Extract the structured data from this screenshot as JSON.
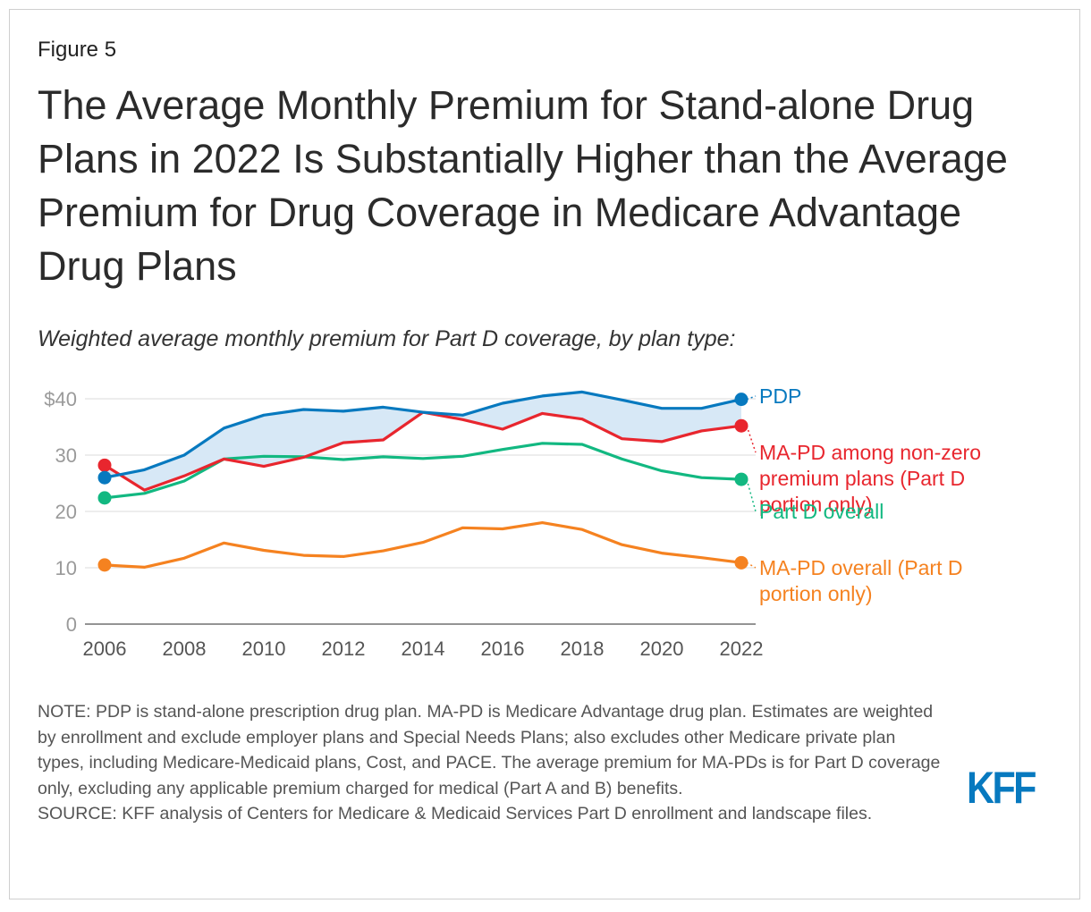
{
  "figure_label": "Figure 5",
  "title": "The Average Monthly Premium for Stand-alone Drug Plans in 2022 Is Substantially Higher than the Average Premium for Drug Coverage in Medicare Advantage Drug Plans",
  "subtitle": "Weighted average monthly premium for Part D coverage, by plan type:",
  "note": "NOTE: PDP is stand-alone prescription drug plan. MA-PD is Medicare Advantage drug plan. Estimates are weighted by enrollment and exclude employer plans and Special Needs Plans; also excludes other Medicare private plan types, including Medicare-Medicaid plans, Cost, and PACE. The average premium for MA-PDs is for Part D coverage only, excluding any applicable premium charged for medical (Part A and B) benefits.",
  "source": "SOURCE: KFF analysis of Centers for Medicare & Medicaid Services Part D enrollment and landscape files.",
  "logo": "KFF",
  "chart_data": {
    "type": "line",
    "title": "Weighted average monthly premium for Part D coverage, by plan type:",
    "xlabel": "",
    "ylabel": "",
    "x": [
      2006,
      2007,
      2008,
      2009,
      2010,
      2011,
      2012,
      2013,
      2014,
      2015,
      2016,
      2017,
      2018,
      2019,
      2020,
      2021,
      2022
    ],
    "x_ticks": [
      "2006",
      "2008",
      "2010",
      "2012",
      "2014",
      "2016",
      "2018",
      "2020",
      "2022"
    ],
    "y_ticks": [
      "$40",
      "30",
      "20",
      "10",
      "0"
    ],
    "ylim": [
      0,
      40
    ],
    "grid": true,
    "shaded_band": "between PDP and MA-PD among non-zero premium plans",
    "series": [
      {
        "name": "PDP",
        "label": "PDP",
        "color": "#0779bf",
        "values": [
          26.0,
          27.4,
          30.0,
          34.8,
          37.1,
          38.1,
          37.8,
          38.5,
          37.6,
          37.1,
          39.2,
          40.5,
          41.2,
          39.8,
          38.3,
          38.3,
          39.9
        ]
      },
      {
        "name": "MA-PD among non-zero premium plans (Part D portion only)",
        "label": "MA-PD among non-zero premium plans (Part D portion only)",
        "color": "#e8262e",
        "values": [
          28.2,
          23.8,
          26.3,
          29.3,
          28.0,
          29.6,
          32.2,
          32.7,
          37.6,
          36.3,
          34.6,
          37.4,
          36.4,
          32.9,
          32.4,
          34.3,
          35.2
        ]
      },
      {
        "name": "Part D overall",
        "label": "Part D overall",
        "color": "#12b881",
        "values": [
          22.4,
          23.2,
          25.4,
          29.3,
          29.8,
          29.7,
          29.2,
          29.7,
          29.4,
          29.8,
          31.0,
          32.1,
          31.9,
          29.3,
          27.2,
          26.0,
          25.7
        ]
      },
      {
        "name": "MA-PD overall (Part D portion only)",
        "label": "MA-PD overall (Part D portion only)",
        "color": "#f58220",
        "values": [
          10.5,
          10.1,
          11.7,
          14.4,
          13.1,
          12.2,
          12.0,
          13.0,
          14.5,
          17.1,
          16.9,
          18.0,
          16.8,
          14.1,
          12.6,
          11.8,
          10.9
        ]
      }
    ]
  }
}
